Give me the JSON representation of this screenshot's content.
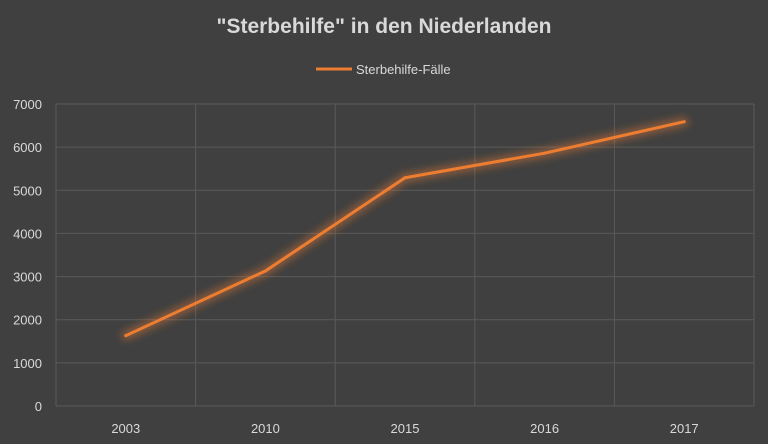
{
  "chart_data": {
    "type": "line",
    "title": "\"Sterbehilfe\" in den Niederlanden",
    "xlabel": "",
    "ylabel": "",
    "categories": [
      "2003",
      "2010",
      "2015",
      "2016",
      "2017"
    ],
    "series": [
      {
        "name": "Sterbehilfe-Fälle",
        "values": [
          1630,
          3130,
          5290,
          5860,
          6590
        ],
        "color": "#ed7d31"
      }
    ],
    "ylim": [
      0,
      7000
    ],
    "yticks": [
      "0",
      "1000",
      "2000",
      "3000",
      "4000",
      "5000",
      "6000",
      "7000"
    ],
    "grid": true,
    "legend": "top-center",
    "background": "#404040"
  }
}
